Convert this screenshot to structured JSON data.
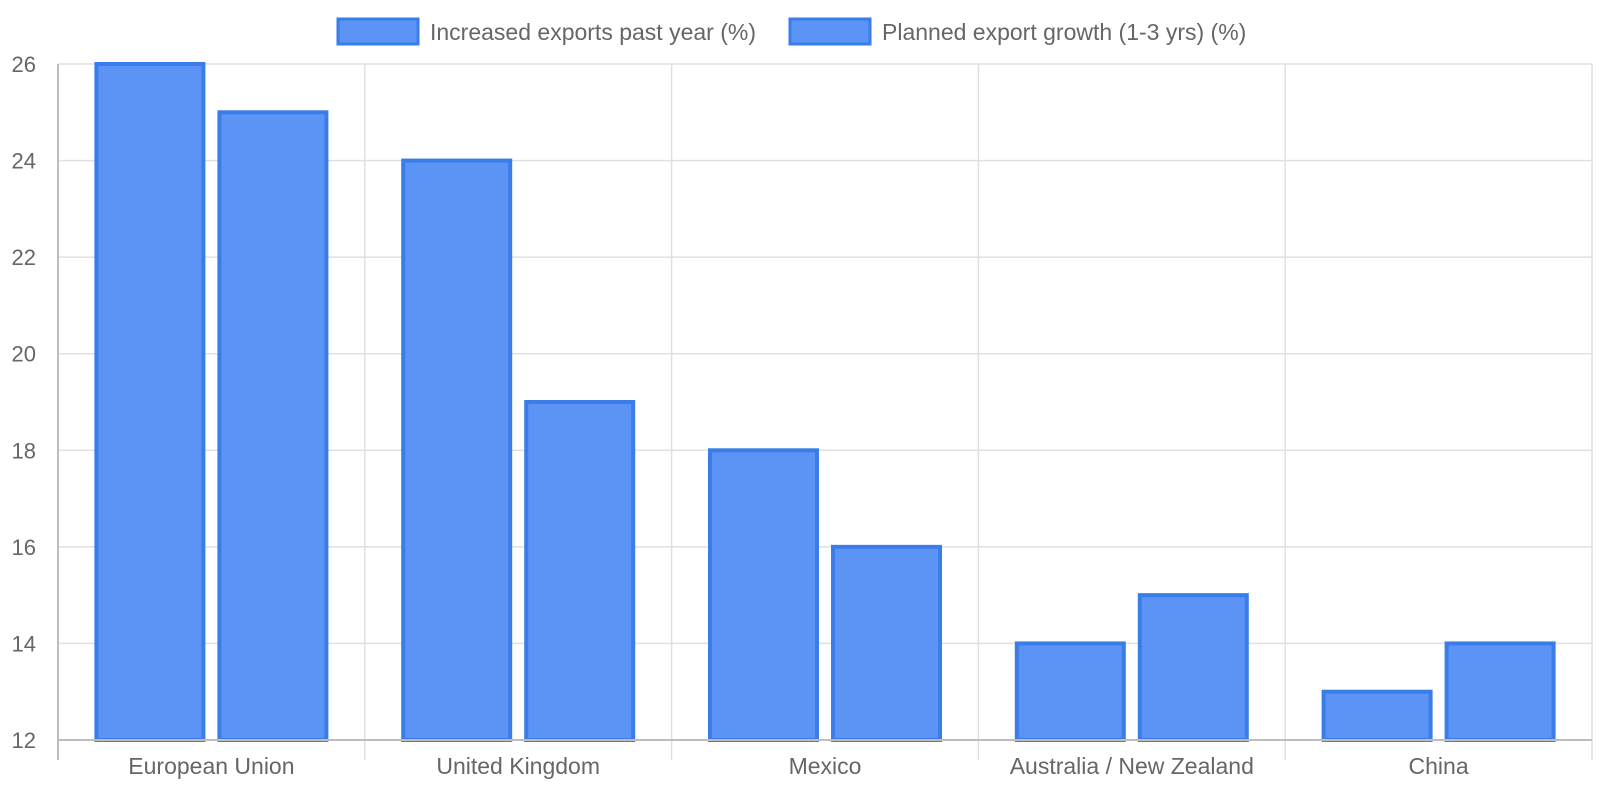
{
  "chart_data": {
    "type": "bar",
    "categories": [
      "European Union",
      "United Kingdom",
      "Mexico",
      "Australia / New Zealand",
      "China"
    ],
    "series": [
      {
        "name": "Increased exports past year (%)",
        "values": [
          26,
          24,
          18,
          14,
          13
        ]
      },
      {
        "name": "Planned export growth (1-3 yrs) (%)",
        "values": [
          25,
          19,
          16,
          15,
          14
        ]
      }
    ],
    "ylim": [
      12,
      26
    ],
    "yticks": [
      12,
      14,
      16,
      18,
      20,
      22,
      24,
      26
    ],
    "grid": true,
    "legend_position": "top",
    "colors": {
      "bar_fill": "#5b94f5",
      "bar_stroke": "#3b7de8"
    }
  }
}
